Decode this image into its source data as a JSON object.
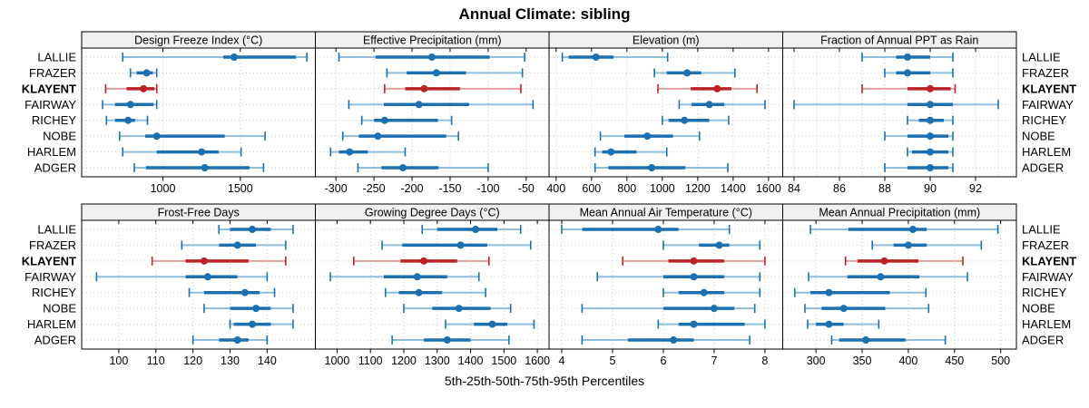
{
  "title": "Annual Climate: sibling",
  "caption": "5th-25th-50th-75th-95th Percentiles",
  "stations": [
    "LALLIE",
    "FRAZER",
    "KLAYENT",
    "FAIRWAY",
    "RICHEY",
    "NOBE",
    "HARLEM",
    "ADGER"
  ],
  "highlight_station": "KLAYENT",
  "colors": {
    "series": "#1c70b0",
    "series_light": "#8fbedd",
    "highlight": "#bb2226",
    "highlight_light": "#e2a0a0",
    "grid": "#c9c9c9",
    "header_bg": "#f0f0f0",
    "border": "#000000",
    "text": "#000000"
  },
  "chart_data": {
    "type": "dotplot-percentiles",
    "percentiles": [
      5,
      25,
      50,
      75,
      95
    ],
    "legend_note": "each row shows 5th-25th-50th-75th-95th percentile whiskers with median dot",
    "stations": [
      "LALLIE",
      "FRAZER",
      "KLAYENT",
      "FAIRWAY",
      "RICHEY",
      "NOBE",
      "HARLEM",
      "ADGER"
    ],
    "panels": [
      {
        "title": "Design Freeze Index (°C)",
        "row": 0,
        "col": 0,
        "xlim": [
          475,
          1985
        ],
        "ticks": [
          1000,
          1500
        ],
        "grid": [
          500,
          1000,
          1500
        ],
        "values": [
          [
            740,
            1390,
            1460,
            1860,
            1930
          ],
          [
            790,
            830,
            895,
            935,
            960
          ],
          [
            630,
            765,
            875,
            945,
            960
          ],
          [
            610,
            690,
            790,
            940,
            960
          ],
          [
            635,
            690,
            775,
            820,
            900
          ],
          [
            720,
            885,
            960,
            1400,
            1660
          ],
          [
            740,
            960,
            1250,
            1360,
            1505
          ],
          [
            815,
            890,
            1270,
            1560,
            1650
          ]
        ]
      },
      {
        "title": "Effective Precipitation (mm)",
        "row": 0,
        "col": 1,
        "xlim": [
          -327,
          -20
        ],
        "ticks": [
          -300,
          -250,
          -200,
          -150,
          -100,
          -50
        ],
        "grid": [
          -300,
          -250,
          -200,
          -150,
          -100,
          -50
        ],
        "values": [
          [
            -296,
            -248,
            -174,
            -98,
            -52
          ],
          [
            -233,
            -207,
            -168,
            -129,
            -55
          ],
          [
            -236,
            -209,
            -184,
            -137,
            -57
          ],
          [
            -283,
            -237,
            -191,
            -125,
            -41
          ],
          [
            -266,
            -250,
            -236,
            -166,
            -148
          ],
          [
            -291,
            -270,
            -245,
            -155,
            -139
          ],
          [
            -307,
            -296,
            -282,
            -258,
            -209
          ],
          [
            -271,
            -240,
            -212,
            -165,
            -100
          ]
        ]
      },
      {
        "title": "Elevation (m)",
        "row": 0,
        "col": 2,
        "xlim": [
          360,
          1680
        ],
        "ticks": [
          400,
          600,
          800,
          1000,
          1200,
          1400,
          1600
        ],
        "grid": [
          400,
          600,
          800,
          1000,
          1200,
          1400,
          1600
        ],
        "values": [
          [
            435,
            470,
            625,
            725,
            1030
          ],
          [
            955,
            1025,
            1140,
            1220,
            1410
          ],
          [
            975,
            1160,
            1310,
            1390,
            1535
          ],
          [
            1095,
            1165,
            1265,
            1350,
            1580
          ],
          [
            1000,
            1035,
            1125,
            1265,
            1375
          ],
          [
            650,
            785,
            915,
            1060,
            1210
          ],
          [
            620,
            660,
            710,
            855,
            1025
          ],
          [
            620,
            695,
            940,
            1130,
            1370
          ]
        ]
      },
      {
        "title": "Fraction of Annual PPT as Rain",
        "row": 0,
        "col": 3,
        "xlim": [
          83.5,
          93.8
        ],
        "ticks": [
          84,
          86,
          88,
          90,
          92
        ],
        "grid": [
          84,
          85,
          86,
          87,
          88,
          89,
          90,
          91,
          92,
          93
        ],
        "values": [
          [
            87,
            88.5,
            89,
            90,
            91
          ],
          [
            88,
            88.5,
            89,
            90,
            91
          ],
          [
            87,
            89,
            90,
            90.9,
            91.1
          ],
          [
            84,
            89,
            90,
            91,
            93
          ],
          [
            89,
            89.5,
            90,
            90.6,
            91
          ],
          [
            88,
            89,
            90,
            90.8,
            91
          ],
          [
            89,
            89.2,
            90,
            90.8,
            91
          ],
          [
            88,
            89,
            90,
            90.8,
            91
          ]
        ]
      },
      {
        "title": "Frost-Free Days",
        "row": 1,
        "col": 0,
        "xlim": [
          90,
          153
        ],
        "ticks": [
          100,
          110,
          120,
          130,
          140
        ],
        "grid": [
          100,
          110,
          120,
          130,
          140
        ],
        "values": [
          [
            127,
            130,
            136,
            141,
            147
          ],
          [
            117,
            127,
            132,
            137,
            145
          ],
          [
            109,
            118,
            123,
            135,
            145
          ],
          [
            94,
            118,
            124,
            132,
            140
          ],
          [
            119,
            123,
            134,
            138,
            142
          ],
          [
            123,
            130,
            137,
            141,
            147
          ],
          [
            130,
            131,
            136,
            141,
            147
          ],
          [
            120,
            127,
            132,
            135,
            140
          ]
        ]
      },
      {
        "title": "Growing Degree Days (°C)",
        "row": 1,
        "col": 1,
        "xlim": [
          935,
          1635
        ],
        "ticks": [
          1000,
          1100,
          1200,
          1300,
          1400,
          1500,
          1600
        ],
        "grid": [
          1000,
          1100,
          1200,
          1300,
          1400,
          1500,
          1600
        ],
        "values": [
          [
            1255,
            1300,
            1415,
            1480,
            1550
          ],
          [
            1135,
            1195,
            1370,
            1450,
            1580
          ],
          [
            1050,
            1190,
            1260,
            1360,
            1455
          ],
          [
            980,
            1140,
            1240,
            1330,
            1425
          ],
          [
            1145,
            1185,
            1245,
            1315,
            1445
          ],
          [
            1200,
            1285,
            1365,
            1460,
            1520
          ],
          [
            1325,
            1410,
            1465,
            1510,
            1590
          ],
          [
            1165,
            1260,
            1330,
            1400,
            1515
          ]
        ]
      },
      {
        "title": "Mean Annual Air Temperature (°C)",
        "row": 1,
        "col": 2,
        "xlim": [
          3.75,
          8.35
        ],
        "ticks": [
          4,
          5,
          6,
          7,
          8
        ],
        "grid": [
          4,
          5,
          6,
          7,
          8
        ],
        "values": [
          [
            4.0,
            4.4,
            5.9,
            6.3,
            7.3
          ],
          [
            6.0,
            6.7,
            7.1,
            7.3,
            7.9
          ],
          [
            5.2,
            6.1,
            6.6,
            7.2,
            8.0
          ],
          [
            4.7,
            6.0,
            6.6,
            7.2,
            7.9
          ],
          [
            6.0,
            6.3,
            6.8,
            7.2,
            7.9
          ],
          [
            4.4,
            6.0,
            7.0,
            7.4,
            7.8
          ],
          [
            5.9,
            6.3,
            6.6,
            7.6,
            8.0
          ],
          [
            4.4,
            5.3,
            6.2,
            6.6,
            7.7
          ]
        ]
      },
      {
        "title": "Mean Annual Precipitation (mm)",
        "row": 1,
        "col": 3,
        "xlim": [
          264,
          517
        ],
        "ticks": [
          300,
          350,
          400,
          450,
          500
        ],
        "grid": [
          300,
          350,
          400,
          450,
          500
        ],
        "values": [
          [
            294,
            335,
            405,
            420,
            497
          ],
          [
            361,
            384,
            400,
            420,
            479
          ],
          [
            332,
            345,
            374,
            411,
            459
          ],
          [
            292,
            334,
            370,
            412,
            464
          ],
          [
            277,
            294,
            314,
            380,
            419
          ],
          [
            288,
            306,
            330,
            375,
            422
          ],
          [
            291,
            300,
            314,
            330,
            368
          ],
          [
            317,
            325,
            354,
            397,
            440
          ]
        ]
      }
    ]
  }
}
